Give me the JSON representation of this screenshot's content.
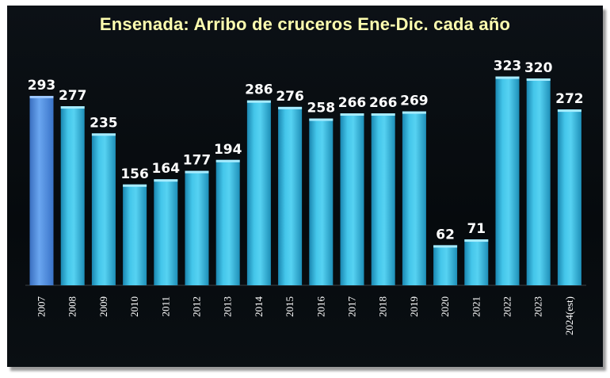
{
  "chart_data": {
    "type": "bar",
    "title": "Ensenada: Arribo de cruceros Ene-Dic. cada año",
    "xlabel": "",
    "ylabel": "",
    "categories": [
      "2007",
      "2008",
      "2009",
      "2010",
      "2011",
      "2012",
      "2013",
      "2014",
      "2015",
      "2016",
      "2017",
      "2018",
      "2019",
      "2020",
      "2021",
      "2022",
      "2023",
      "2024(est)"
    ],
    "values": [
      293,
      277,
      235,
      156,
      164,
      177,
      194,
      286,
      276,
      258,
      266,
      266,
      269,
      62,
      71,
      323,
      320,
      272
    ],
    "highlight_index": 0,
    "colors": {
      "bar": "#2fb0d8",
      "highlight": "#4f8fe0",
      "background": "#080c10",
      "title": "#ffffb0"
    },
    "grid": false,
    "legend": "none"
  }
}
